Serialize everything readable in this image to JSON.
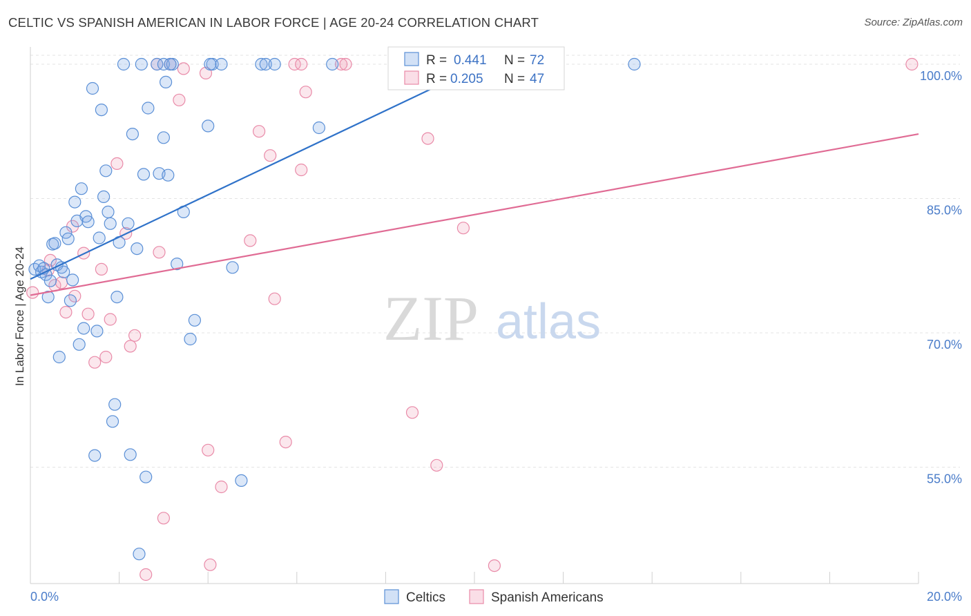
{
  "title": "CELTIC VS SPANISH AMERICAN IN LABOR FORCE | AGE 20-24 CORRELATION CHART",
  "source": "Source: ZipAtlas.com",
  "watermark": {
    "zip": "ZIP",
    "atlas": "atlas"
  },
  "colors": {
    "blue": "#5a8fd6",
    "blue_fill": "rgba(126,168,230,0.28)",
    "blue_line": "#2f72c9",
    "pink": "#e98aa8",
    "pink_fill": "rgba(240,160,185,0.25)",
    "pink_line": "#e06b94"
  },
  "legend": {
    "r_label": "R =",
    "n_label": "N =",
    "blue": {
      "r": "0.441",
      "n": "72"
    },
    "pink": {
      "r": "0.205",
      "n": "47"
    }
  },
  "bottom_legend": {
    "celtics": "Celtics",
    "spanish": "Spanish Americans"
  },
  "chart_data": {
    "type": "scatter",
    "title": "CELTIC VS SPANISH AMERICAN IN LABOR FORCE | AGE 20-24 CORRELATION CHART",
    "xlabel": "",
    "ylabel": "In Labor Force | Age 20-24",
    "xlim": [
      0,
      20
    ],
    "ylim": [
      42,
      101
    ],
    "x_tick_labels": [
      "0.0%",
      "20.0%"
    ],
    "y_ticks": [
      55,
      70,
      85,
      100
    ],
    "y_tick_labels": [
      "55.0%",
      "70.0%",
      "85.0%",
      "100.0%"
    ],
    "grid": true,
    "legend_position": "top-center",
    "series": [
      {
        "name": "Celtics",
        "color": "#5a8fd6",
        "trend": {
          "x": [
            0.0,
            10.2
          ],
          "y": [
            76.0,
            100.0
          ]
        },
        "points": [
          [
            0.1,
            77.1
          ],
          [
            0.2,
            77.5
          ],
          [
            0.25,
            76.8
          ],
          [
            0.3,
            77.2
          ],
          [
            0.35,
            76.5
          ],
          [
            0.4,
            74.0
          ],
          [
            0.45,
            75.8
          ],
          [
            0.5,
            79.9
          ],
          [
            0.55,
            80.0
          ],
          [
            0.6,
            77.6
          ],
          [
            0.65,
            67.3
          ],
          [
            0.7,
            77.3
          ],
          [
            0.75,
            76.8
          ],
          [
            0.8,
            81.2
          ],
          [
            0.85,
            80.5
          ],
          [
            0.9,
            73.6
          ],
          [
            0.95,
            75.9
          ],
          [
            1.0,
            84.6
          ],
          [
            1.05,
            82.5
          ],
          [
            1.1,
            68.7
          ],
          [
            1.15,
            86.1
          ],
          [
            1.2,
            70.5
          ],
          [
            1.25,
            83.0
          ],
          [
            1.3,
            82.4
          ],
          [
            1.4,
            97.3
          ],
          [
            1.45,
            56.3
          ],
          [
            1.5,
            70.2
          ],
          [
            1.55,
            80.6
          ],
          [
            1.6,
            94.9
          ],
          [
            1.65,
            85.2
          ],
          [
            1.7,
            88.1
          ],
          [
            1.75,
            83.5
          ],
          [
            1.8,
            82.2
          ],
          [
            1.85,
            60.1
          ],
          [
            1.9,
            62.0
          ],
          [
            1.95,
            74.0
          ],
          [
            2.0,
            80.1
          ],
          [
            2.1,
            100.0
          ],
          [
            2.2,
            82.2
          ],
          [
            2.25,
            56.4
          ],
          [
            2.3,
            92.2
          ],
          [
            2.4,
            79.4
          ],
          [
            2.45,
            45.3
          ],
          [
            2.5,
            100.0
          ],
          [
            2.55,
            87.7
          ],
          [
            2.6,
            53.9
          ],
          [
            2.65,
            95.1
          ],
          [
            2.85,
            100.0
          ],
          [
            2.9,
            87.8
          ],
          [
            3.0,
            100.0
          ],
          [
            3.0,
            91.8
          ],
          [
            3.05,
            98.0
          ],
          [
            3.1,
            87.6
          ],
          [
            3.2,
            100.0
          ],
          [
            3.15,
            100.0
          ],
          [
            3.3,
            77.7
          ],
          [
            3.45,
            83.5
          ],
          [
            3.7,
            71.4
          ],
          [
            3.6,
            69.3
          ],
          [
            4.0,
            93.1
          ],
          [
            4.1,
            100.0
          ],
          [
            4.05,
            100.0
          ],
          [
            4.3,
            100.0
          ],
          [
            4.55,
            77.3
          ],
          [
            4.75,
            53.5
          ],
          [
            5.2,
            100.0
          ],
          [
            5.3,
            100.0
          ],
          [
            5.5,
            100.0
          ],
          [
            6.5,
            92.9
          ],
          [
            6.8,
            100.0
          ],
          [
            10.2,
            100.0
          ],
          [
            13.6,
            100.0
          ]
        ]
      },
      {
        "name": "Spanish Americans",
        "color": "#e98aa8",
        "trend": {
          "x": [
            0.0,
            20.0
          ],
          "y": [
            74.2,
            92.2
          ]
        },
        "points": [
          [
            0.05,
            74.5
          ],
          [
            0.4,
            77.0
          ],
          [
            0.45,
            78.1
          ],
          [
            0.55,
            75.3
          ],
          [
            0.7,
            75.6
          ],
          [
            0.8,
            72.3
          ],
          [
            0.95,
            81.9
          ],
          [
            1.0,
            74.1
          ],
          [
            1.2,
            78.9
          ],
          [
            1.3,
            72.1
          ],
          [
            1.45,
            66.7
          ],
          [
            1.6,
            77.1
          ],
          [
            1.7,
            67.3
          ],
          [
            1.8,
            71.5
          ],
          [
            1.95,
            88.9
          ],
          [
            2.15,
            81.1
          ],
          [
            2.25,
            68.5
          ],
          [
            2.35,
            69.7
          ],
          [
            2.6,
            43.0
          ],
          [
            2.85,
            100.0
          ],
          [
            2.9,
            79.0
          ],
          [
            3.0,
            49.3
          ],
          [
            3.15,
            100.0
          ],
          [
            3.35,
            96.0
          ],
          [
            3.45,
            99.5
          ],
          [
            3.95,
            99.0
          ],
          [
            4.0,
            56.9
          ],
          [
            4.05,
            44.1
          ],
          [
            4.3,
            52.8
          ],
          [
            4.95,
            80.3
          ],
          [
            5.15,
            92.5
          ],
          [
            5.4,
            89.8
          ],
          [
            5.5,
            73.8
          ],
          [
            5.75,
            57.8
          ],
          [
            5.95,
            100.0
          ],
          [
            6.1,
            88.2
          ],
          [
            6.1,
            100.0
          ],
          [
            6.2,
            96.9
          ],
          [
            7.0,
            100.0
          ],
          [
            7.1,
            100.0
          ],
          [
            8.6,
            61.1
          ],
          [
            8.95,
            91.7
          ],
          [
            9.15,
            55.2
          ],
          [
            9.75,
            81.7
          ],
          [
            10.25,
            100.0
          ],
          [
            10.45,
            44.0
          ],
          [
            19.85,
            100.0
          ]
        ]
      }
    ]
  }
}
